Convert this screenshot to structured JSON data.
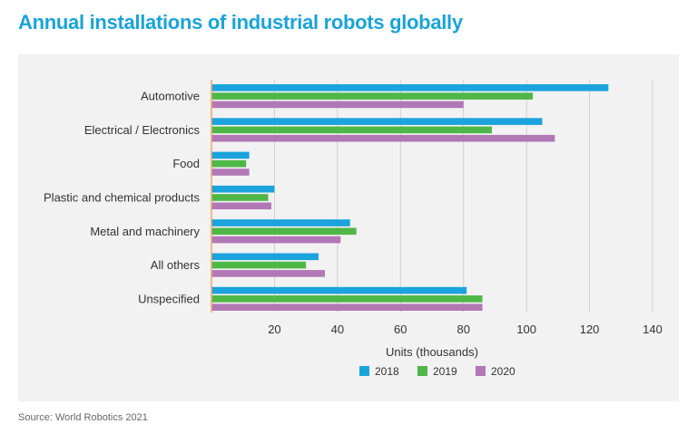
{
  "title": "Annual installations of industrial robots globally",
  "source": "Source: World Robotics 2021",
  "chart_data": {
    "type": "bar",
    "orientation": "horizontal",
    "categories": [
      "Automotive",
      "Electrical / Electronics",
      "Food",
      "Plastic and chemical products",
      "Metal and machinery",
      "All others",
      "Unspecified"
    ],
    "series": [
      {
        "name": "2018",
        "color": "#1ba3dd",
        "values": [
          126,
          105,
          12,
          20,
          44,
          34,
          81
        ]
      },
      {
        "name": "2019",
        "color": "#4fb748",
        "values": [
          102,
          89,
          11,
          18,
          46,
          30,
          86
        ]
      },
      {
        "name": "2020",
        "color": "#b278b6",
        "values": [
          80,
          109,
          12,
          19,
          41,
          36,
          86
        ]
      }
    ],
    "xlabel": "Units (thousands)",
    "xlim": [
      0,
      140
    ],
    "xticks": [
      20,
      40,
      60,
      80,
      100,
      120,
      140
    ],
    "grid": "vertical",
    "legend": "bottom-center",
    "baseline_color": "#f0a870"
  }
}
